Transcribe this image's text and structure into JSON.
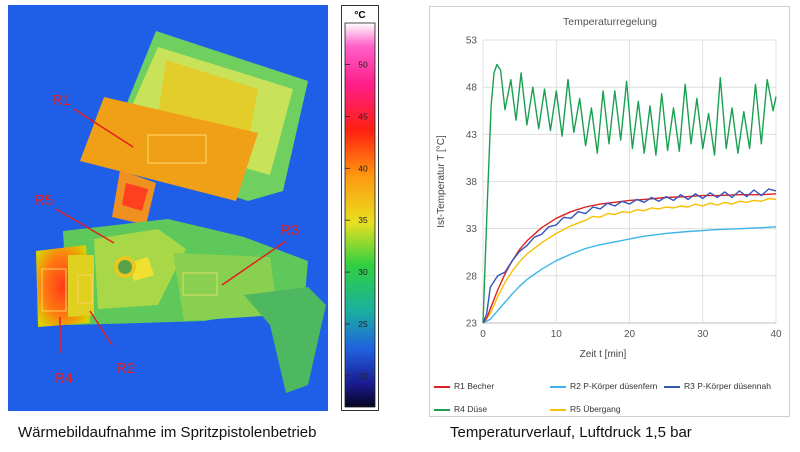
{
  "left_panel": {
    "caption": "Wärmebildaufnahme im Spritzpistolenbetrieb",
    "region_labels": [
      "R1",
      "R5",
      "R3",
      "R2",
      "R4"
    ],
    "colorbar": {
      "unit": "°C",
      "ticks": [
        "50",
        "45",
        "40",
        "35",
        "30",
        "25",
        "20"
      ],
      "min": 17,
      "max": 54
    }
  },
  "right_panel": {
    "caption": "Temperaturverlauf, Luftdruck 1,5 bar"
  },
  "chart_data": {
    "type": "line",
    "title": "Temperaturregelung",
    "xlabel": "Zeit t [min]",
    "ylabel": "Ist-Temperatur T [°C]",
    "xlim": [
      0,
      40
    ],
    "ylim": [
      23,
      53
    ],
    "xticks": [
      "0",
      "10",
      "20",
      "30",
      "40"
    ],
    "yticks": [
      "23",
      "28",
      "33",
      "38",
      "43",
      "48",
      "53"
    ],
    "grid": true,
    "legend_position": "bottom",
    "series": [
      {
        "name": "R1 Becher",
        "color": "#e02020",
        "x": [
          0,
          0.5,
          1,
          2,
          3,
          4,
          5,
          6,
          8,
          10,
          12,
          14,
          16,
          18,
          20,
          22,
          25,
          28,
          30,
          32,
          35,
          38,
          40
        ],
        "y": [
          23,
          23.5,
          24.5,
          26.5,
          28.2,
          29.6,
          30.8,
          31.7,
          33.1,
          34.1,
          34.8,
          35.3,
          35.6,
          35.8,
          36,
          36.1,
          36.3,
          36.4,
          36.5,
          36.5,
          36.6,
          36.6,
          36.7
        ]
      },
      {
        "name": "R2 P-Körper düsenfern",
        "color": "#3ab4ea",
        "x": [
          0,
          1,
          2,
          3,
          4,
          5,
          6,
          8,
          10,
          12,
          14,
          16,
          18,
          20,
          22,
          25,
          28,
          30,
          32,
          35,
          38,
          40
        ],
        "y": [
          23,
          23.4,
          24.3,
          25.2,
          26.1,
          26.9,
          27.6,
          28.7,
          29.6,
          30.3,
          30.9,
          31.3,
          31.6,
          31.9,
          32.2,
          32.5,
          32.7,
          32.8,
          32.9,
          33,
          33.1,
          33.2
        ]
      },
      {
        "name": "R3 P-Körper düsennah",
        "color": "#3355bb",
        "x": [
          0,
          0.5,
          1,
          2,
          3,
          4,
          5,
          6,
          7,
          8,
          9,
          10,
          11,
          12,
          13,
          14,
          15,
          16,
          17,
          18,
          19,
          20,
          21,
          22,
          23,
          24,
          25,
          26,
          27,
          28,
          29,
          30,
          31,
          32,
          33,
          34,
          35,
          36,
          37,
          38,
          39,
          40
        ],
        "y": [
          23,
          24,
          26.8,
          28,
          28.4,
          29.6,
          30.6,
          31.2,
          32.1,
          32.4,
          33.2,
          33.4,
          34.2,
          34.1,
          34.8,
          34.6,
          35.3,
          35.1,
          35.7,
          35.4,
          35.9,
          35.6,
          36.1,
          35.8,
          36.3,
          35.9,
          36.4,
          36,
          36.6,
          36.1,
          36.7,
          36.2,
          36.8,
          36.3,
          36.9,
          36.3,
          37,
          36.4,
          37.1,
          36.5,
          37.2,
          37
        ]
      },
      {
        "name": "R4 Düse",
        "color": "#1aa050",
        "x": [
          0,
          0.6,
          1.1,
          1.5,
          1.9,
          2.4,
          3,
          3.8,
          4.5,
          5.2,
          6,
          6.8,
          7.6,
          8.4,
          9.2,
          10,
          10.8,
          11.6,
          12.4,
          13.2,
          14,
          14.8,
          15.6,
          16.4,
          17.2,
          18,
          18.8,
          19.6,
          20.4,
          21.2,
          22,
          22.8,
          23.6,
          24.4,
          25.2,
          26,
          26.8,
          27.6,
          28.4,
          29.2,
          30,
          30.8,
          31.6,
          32.4,
          33.2,
          34,
          34.8,
          35.6,
          36.4,
          37.2,
          38,
          38.8,
          39.6,
          40
        ],
        "y": [
          23,
          36,
          46,
          49.5,
          50.4,
          49.8,
          45.6,
          48.8,
          44.5,
          49.5,
          44,
          48,
          43.6,
          47.8,
          43.4,
          47.6,
          42.8,
          48.8,
          43.2,
          46.8,
          41.8,
          45.8,
          41,
          47.6,
          42,
          47.6,
          42.4,
          48.6,
          41.5,
          46.5,
          41,
          46,
          40.8,
          47.3,
          41.3,
          45.8,
          41.2,
          48.3,
          42,
          46.8,
          41.5,
          45.2,
          40.8,
          49,
          41.5,
          45.8,
          41,
          45.4,
          41.5,
          48.3,
          42,
          48.8,
          45.5,
          47
        ]
      },
      {
        "name": "R5 Übergang",
        "color": "#f5c000",
        "x": [
          0,
          1,
          2,
          3,
          4,
          5,
          6,
          8,
          10,
          12,
          14,
          15,
          16,
          17,
          18,
          19,
          20,
          21,
          22,
          23,
          24,
          25,
          26,
          27,
          28,
          29,
          30,
          31,
          32,
          33,
          34,
          35,
          36,
          37,
          38,
          39,
          40
        ],
        "y": [
          23,
          24,
          25.8,
          27.3,
          28.5,
          29.5,
          30.3,
          31.5,
          32.5,
          33.3,
          33.9,
          34.3,
          34.2,
          34.6,
          34.5,
          34.8,
          34.7,
          35,
          34.9,
          35.2,
          35.1,
          35.3,
          35.2,
          35.4,
          35.3,
          35.6,
          35.4,
          35.7,
          35.5,
          35.8,
          35.6,
          35.9,
          35.8,
          36,
          35.9,
          36.2,
          36.1
        ]
      }
    ]
  }
}
